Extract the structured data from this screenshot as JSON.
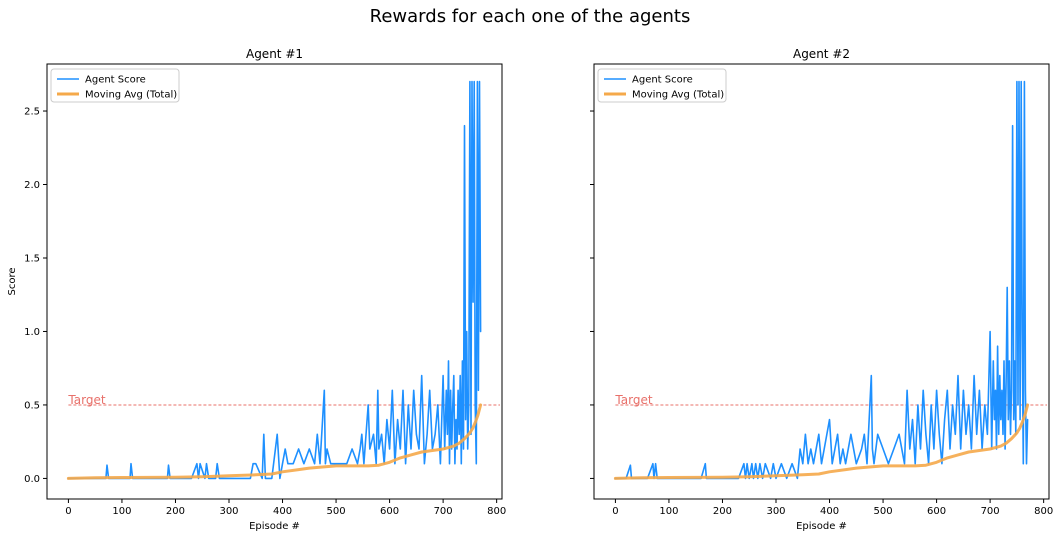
{
  "figure_title": "Rewards for each one of the agents",
  "colors": {
    "agent_score": "#1e90ff",
    "moving_avg": "#f5a94a",
    "target": "#e8706a"
  },
  "chart_data": [
    {
      "type": "line",
      "title": "Agent #1",
      "xlabel": "Episode #",
      "ylabel": "Score",
      "xlim": [
        -40,
        810
      ],
      "ylim": [
        -0.14,
        2.82
      ],
      "xticks": [
        0,
        100,
        200,
        300,
        400,
        500,
        600,
        700,
        800
      ],
      "yticks": [
        0.0,
        0.5,
        1.0,
        1.5,
        2.0,
        2.5
      ],
      "grid": false,
      "legend": "top-left",
      "target": {
        "label": "Target",
        "value": 0.5
      },
      "series": [
        {
          "name": "Agent Score",
          "x": [
            0,
            10,
            20,
            30,
            40,
            50,
            60,
            70,
            72,
            75,
            90,
            100,
            115,
            117,
            120,
            140,
            160,
            185,
            187,
            190,
            210,
            230,
            240,
            243,
            246,
            255,
            258,
            262,
            275,
            278,
            282,
            300,
            320,
            340,
            345,
            350,
            362,
            365,
            368,
            380,
            390,
            395,
            400,
            405,
            410,
            420,
            430,
            440,
            450,
            460,
            465,
            470,
            478,
            480,
            483,
            490,
            500,
            510,
            520,
            530,
            540,
            545,
            548,
            552,
            558,
            560,
            563,
            570,
            575,
            578,
            580,
            585,
            590,
            595,
            600,
            605,
            610,
            615,
            620,
            625,
            630,
            635,
            640,
            645,
            650,
            655,
            660,
            665,
            670,
            675,
            680,
            685,
            690,
            695,
            700,
            703,
            706,
            708,
            710,
            712,
            714,
            716,
            718,
            720,
            722,
            724,
            726,
            728,
            730,
            732,
            734,
            736,
            738,
            740,
            742,
            744,
            746,
            748,
            750,
            752,
            754,
            756,
            758,
            760,
            762,
            764,
            766,
            768,
            770
          ],
          "y": [
            0,
            0,
            0,
            0,
            0,
            0,
            0,
            0,
            0.09,
            0,
            0,
            0,
            0,
            0.1,
            0,
            0,
            0,
            0,
            0.09,
            0,
            0,
            0,
            0.1,
            0,
            0.1,
            0,
            0.1,
            0,
            0,
            0.1,
            0,
            0,
            0,
            0,
            0.1,
            0.1,
            0,
            0.3,
            0,
            0,
            0.3,
            0,
            0.1,
            0.2,
            0.1,
            0.1,
            0.2,
            0.1,
            0.2,
            0.1,
            0.3,
            0.1,
            0.6,
            0.1,
            0.2,
            0.1,
            0.1,
            0.1,
            0.1,
            0.2,
            0.1,
            0.2,
            0.3,
            0.1,
            0.4,
            0.5,
            0.2,
            0.3,
            0.1,
            0.6,
            0.2,
            0.3,
            0.1,
            0.4,
            0.2,
            0.6,
            0.1,
            0.4,
            0.2,
            0.6,
            0.1,
            0.5,
            0.2,
            0.6,
            0.3,
            0.2,
            0.7,
            0.1,
            0.3,
            0.6,
            0.2,
            0.3,
            0.5,
            0.1,
            0.7,
            0.2,
            0.6,
            0.3,
            0.8,
            0.1,
            0.6,
            0.2,
            0.5,
            0.7,
            0.1,
            0.4,
            0.2,
            0.6,
            0.3,
            0.7,
            0.1,
            0.8,
            0.2,
            2.4,
            0.4,
            1.0,
            0.2,
            0.5,
            2.7,
            0.3,
            2.7,
            1.2,
            2.7,
            0.5,
            0.1,
            2.7,
            0.6,
            2.7,
            1.0
          ],
          "color": "#1e90ff"
        },
        {
          "name": "Moving Avg (Total)",
          "x": [
            0,
            50,
            100,
            150,
            200,
            250,
            300,
            350,
            380,
            400,
            430,
            450,
            480,
            500,
            520,
            540,
            560,
            580,
            600,
            620,
            640,
            660,
            680,
            700,
            710,
            720,
            730,
            740,
            745,
            750,
            755,
            760,
            765,
            770
          ],
          "y": [
            0.0,
            0.005,
            0.006,
            0.007,
            0.008,
            0.012,
            0.018,
            0.025,
            0.03,
            0.045,
            0.06,
            0.07,
            0.08,
            0.085,
            0.085,
            0.085,
            0.085,
            0.09,
            0.11,
            0.14,
            0.16,
            0.18,
            0.19,
            0.2,
            0.21,
            0.22,
            0.24,
            0.27,
            0.29,
            0.31,
            0.34,
            0.38,
            0.43,
            0.5
          ],
          "color": "#f5a94a"
        }
      ]
    },
    {
      "type": "line",
      "title": "Agent #2",
      "xlabel": "Episode #",
      "ylabel": "",
      "xlim": [
        -40,
        810
      ],
      "ylim": [
        -0.14,
        2.82
      ],
      "xticks": [
        0,
        100,
        200,
        300,
        400,
        500,
        600,
        700,
        800
      ],
      "yticks": [
        0.0,
        0.5,
        1.0,
        1.5,
        2.0,
        2.5
      ],
      "grid": false,
      "legend": "top-left",
      "target": {
        "label": "Target",
        "value": 0.5
      },
      "series": [
        {
          "name": "Agent Score",
          "x": [
            0,
            10,
            20,
            28,
            30,
            40,
            60,
            70,
            72,
            75,
            78,
            85,
            100,
            120,
            140,
            160,
            168,
            170,
            190,
            210,
            230,
            240,
            243,
            246,
            250,
            255,
            258,
            262,
            266,
            270,
            275,
            280,
            290,
            295,
            300,
            310,
            320,
            330,
            340,
            345,
            350,
            355,
            360,
            365,
            370,
            380,
            385,
            390,
            400,
            405,
            410,
            415,
            420,
            425,
            430,
            440,
            450,
            460,
            465,
            470,
            478,
            480,
            483,
            490,
            500,
            510,
            520,
            530,
            540,
            545,
            550,
            555,
            560,
            565,
            570,
            575,
            580,
            585,
            590,
            595,
            600,
            605,
            610,
            615,
            620,
            625,
            630,
            635,
            640,
            645,
            650,
            655,
            660,
            665,
            670,
            675,
            680,
            685,
            690,
            695,
            700,
            703,
            706,
            708,
            710,
            712,
            714,
            716,
            718,
            720,
            722,
            724,
            726,
            728,
            730,
            732,
            734,
            736,
            738,
            740,
            742,
            744,
            746,
            748,
            750,
            752,
            754,
            756,
            758,
            760,
            762,
            764,
            766,
            768,
            770
          ],
          "y": [
            0,
            0,
            0,
            0.09,
            0,
            0,
            0,
            0.1,
            0,
            0.1,
            0,
            0,
            0,
            0,
            0,
            0,
            0.1,
            0,
            0,
            0,
            0,
            0.1,
            0,
            0.1,
            0,
            0.1,
            0,
            0.1,
            0,
            0.1,
            0,
            0.1,
            0,
            0.1,
            0,
            0.1,
            0,
            0.1,
            0,
            0.2,
            0.1,
            0.3,
            0.1,
            0.2,
            0.1,
            0.3,
            0.1,
            0.2,
            0.4,
            0.1,
            0.2,
            0.3,
            0.1,
            0.2,
            0.1,
            0.3,
            0.1,
            0.2,
            0.3,
            0.1,
            0.7,
            0.2,
            0.1,
            0.3,
            0.2,
            0.1,
            0.2,
            0.3,
            0.1,
            0.6,
            0.2,
            0.4,
            0.1,
            0.5,
            0.2,
            0.6,
            0.3,
            0.1,
            0.5,
            0.2,
            0.6,
            0.3,
            0.1,
            0.4,
            0.6,
            0.2,
            0.5,
            0.3,
            0.7,
            0.2,
            0.6,
            0.3,
            0.5,
            0.2,
            0.7,
            0.3,
            0.6,
            0.2,
            0.5,
            0.3,
            1.0,
            0.2,
            0.8,
            0.4,
            0.6,
            0.2,
            0.9,
            0.3,
            0.7,
            0.4,
            0.6,
            0.3,
            0.8,
            0.2,
            0.7,
            1.3,
            0.4,
            0.8,
            0.3,
            0.6,
            2.4,
            0.4,
            0.8,
            0.3,
            2.7,
            0.5,
            2.7,
            0.4,
            2.7,
            1.0,
            0.1,
            2.7,
            0.6,
            0.1,
            0.4
          ],
          "color": "#1e90ff"
        },
        {
          "name": "Moving Avg (Total)",
          "x": [
            0,
            50,
            100,
            150,
            200,
            250,
            300,
            350,
            380,
            400,
            430,
            450,
            480,
            500,
            520,
            540,
            560,
            580,
            600,
            620,
            640,
            660,
            680,
            700,
            710,
            720,
            730,
            740,
            745,
            750,
            755,
            760,
            765,
            770
          ],
          "y": [
            0.0,
            0.005,
            0.006,
            0.007,
            0.008,
            0.012,
            0.018,
            0.025,
            0.03,
            0.045,
            0.06,
            0.07,
            0.08,
            0.085,
            0.085,
            0.085,
            0.085,
            0.09,
            0.11,
            0.14,
            0.16,
            0.18,
            0.19,
            0.2,
            0.21,
            0.22,
            0.24,
            0.27,
            0.29,
            0.31,
            0.34,
            0.38,
            0.43,
            0.5
          ],
          "color": "#f5a94a"
        }
      ]
    }
  ]
}
